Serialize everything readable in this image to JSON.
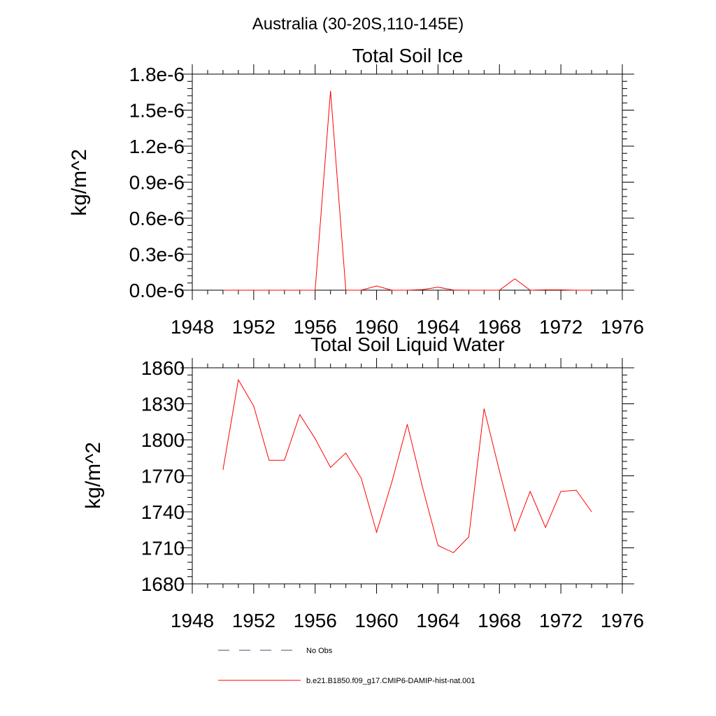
{
  "figure": {
    "suptitle": "Australia (30-20S,110-145E)",
    "legend": {
      "entries": [
        {
          "label": "No Obs",
          "color": "#4a4a7a",
          "dash": true
        },
        {
          "label": "b.e21.B1850.f09_g17.CMIP6-DAMIP-hist-nat.001",
          "color": "#ff0000",
          "dash": false
        }
      ]
    }
  },
  "chart_data": [
    {
      "type": "line",
      "title": "Total Soil Ice",
      "xlabel": "",
      "ylabel": "kg/m^2",
      "xlim": [
        1948,
        1976
      ],
      "ylim": [
        0.0,
        1.8e-06
      ],
      "grid": false,
      "x_ticks": [
        1948,
        1952,
        1956,
        1960,
        1964,
        1968,
        1972,
        1976
      ],
      "x_tick_labels": [
        "1948",
        "1952",
        "1956",
        "1960",
        "1964",
        "1968",
        "1972",
        "1976"
      ],
      "y_ticks": [
        0.0,
        3e-07,
        6e-07,
        9e-07,
        1.2e-06,
        1.5e-06,
        1.8e-06
      ],
      "y_tick_labels": [
        "0.0e-6",
        "0.3e-6",
        "0.6e-6",
        "0.9e-6",
        "1.2e-6",
        "1.5e-6",
        "1.8e-6"
      ],
      "series": [
        {
          "color": "#ff0000",
          "x": [
            1950,
            1951,
            1952,
            1953,
            1954,
            1955,
            1956,
            1957,
            1958,
            1959,
            1960,
            1961,
            1962,
            1963,
            1964,
            1965,
            1966,
            1967,
            1968,
            1969,
            1970,
            1971,
            1972,
            1973,
            1974
          ],
          "values": [
            0,
            0,
            0,
            0,
            0,
            0,
            0,
            1.66e-06,
            0,
            0,
            3.5e-08,
            0,
            0,
            5e-09,
            2.5e-08,
            2e-09,
            0,
            0,
            0,
            9.5e-08,
            0,
            3e-09,
            3e-09,
            0,
            0
          ]
        }
      ]
    },
    {
      "type": "line",
      "title": "Total Soil Liquid Water",
      "xlabel": "",
      "ylabel": "kg/m^2",
      "xlim": [
        1948,
        1976
      ],
      "ylim": [
        1680,
        1860
      ],
      "grid": false,
      "x_ticks": [
        1948,
        1952,
        1956,
        1960,
        1964,
        1968,
        1972,
        1976
      ],
      "x_tick_labels": [
        "1948",
        "1952",
        "1956",
        "1960",
        "1964",
        "1968",
        "1972",
        "1976"
      ],
      "y_ticks": [
        1680,
        1710,
        1740,
        1770,
        1800,
        1830,
        1860
      ],
      "y_tick_labels": [
        "1680",
        "1710",
        "1740",
        "1770",
        "1800",
        "1830",
        "1860"
      ],
      "series": [
        {
          "color": "#ff0000",
          "x": [
            1950,
            1951,
            1952,
            1953,
            1954,
            1955,
            1956,
            1957,
            1958,
            1959,
            1960,
            1961,
            1962,
            1963,
            1964,
            1965,
            1966,
            1967,
            1968,
            1969,
            1970,
            1971,
            1972,
            1973,
            1974
          ],
          "values": [
            1775,
            1850,
            1828,
            1783,
            1783,
            1821,
            1801,
            1777,
            1789,
            1768,
            1723,
            1765,
            1813,
            1760,
            1712,
            1706,
            1719,
            1826,
            1774,
            1724,
            1757,
            1727,
            1757,
            1758,
            1740
          ]
        }
      ]
    }
  ]
}
